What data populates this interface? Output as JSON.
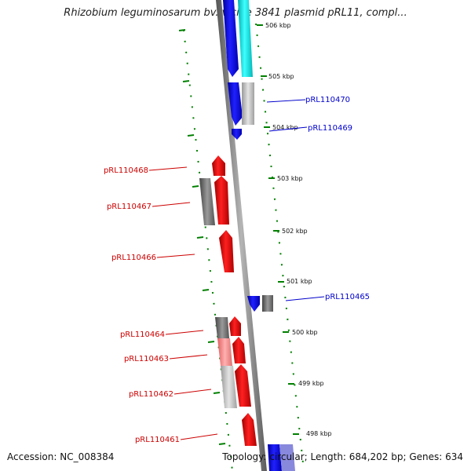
{
  "title": "Rhizobium leguminosarum bv. viciae 3841 plasmid pRL11, compl...",
  "footer": {
    "accession": "Accession: NC_008384",
    "summary": "Topology: circular; Length: 684,202 bp; Genes: 634"
  },
  "scale_labels": [
    "506 kbp",
    "505 kbp",
    "504 kbp",
    "503 kbp",
    "502 kbp",
    "501 kbp",
    "500 kbp",
    "499 kbp",
    "498 kbp"
  ],
  "gene_labels": {
    "pRL110470": "pRL110470",
    "pRL110469": "pRL110469",
    "pRL110468": "pRL110468",
    "pRL110467": "pRL110467",
    "pRL110466": "pRL110466",
    "pRL110465": "pRL110465",
    "pRL110464": "pRL110464",
    "pRL110463": "pRL110463",
    "pRL110462": "pRL110462",
    "pRL110461": "pRL110461"
  },
  "colors": {
    "forward_cds": "#ff0000",
    "reverse_cds": "#0000ff",
    "rna_feature": "#00ffff",
    "gray_feature": "#808080",
    "backbone": "#808080",
    "tick": "#008000",
    "left_label": "#cc0000",
    "right_label": "#0000cc"
  }
}
